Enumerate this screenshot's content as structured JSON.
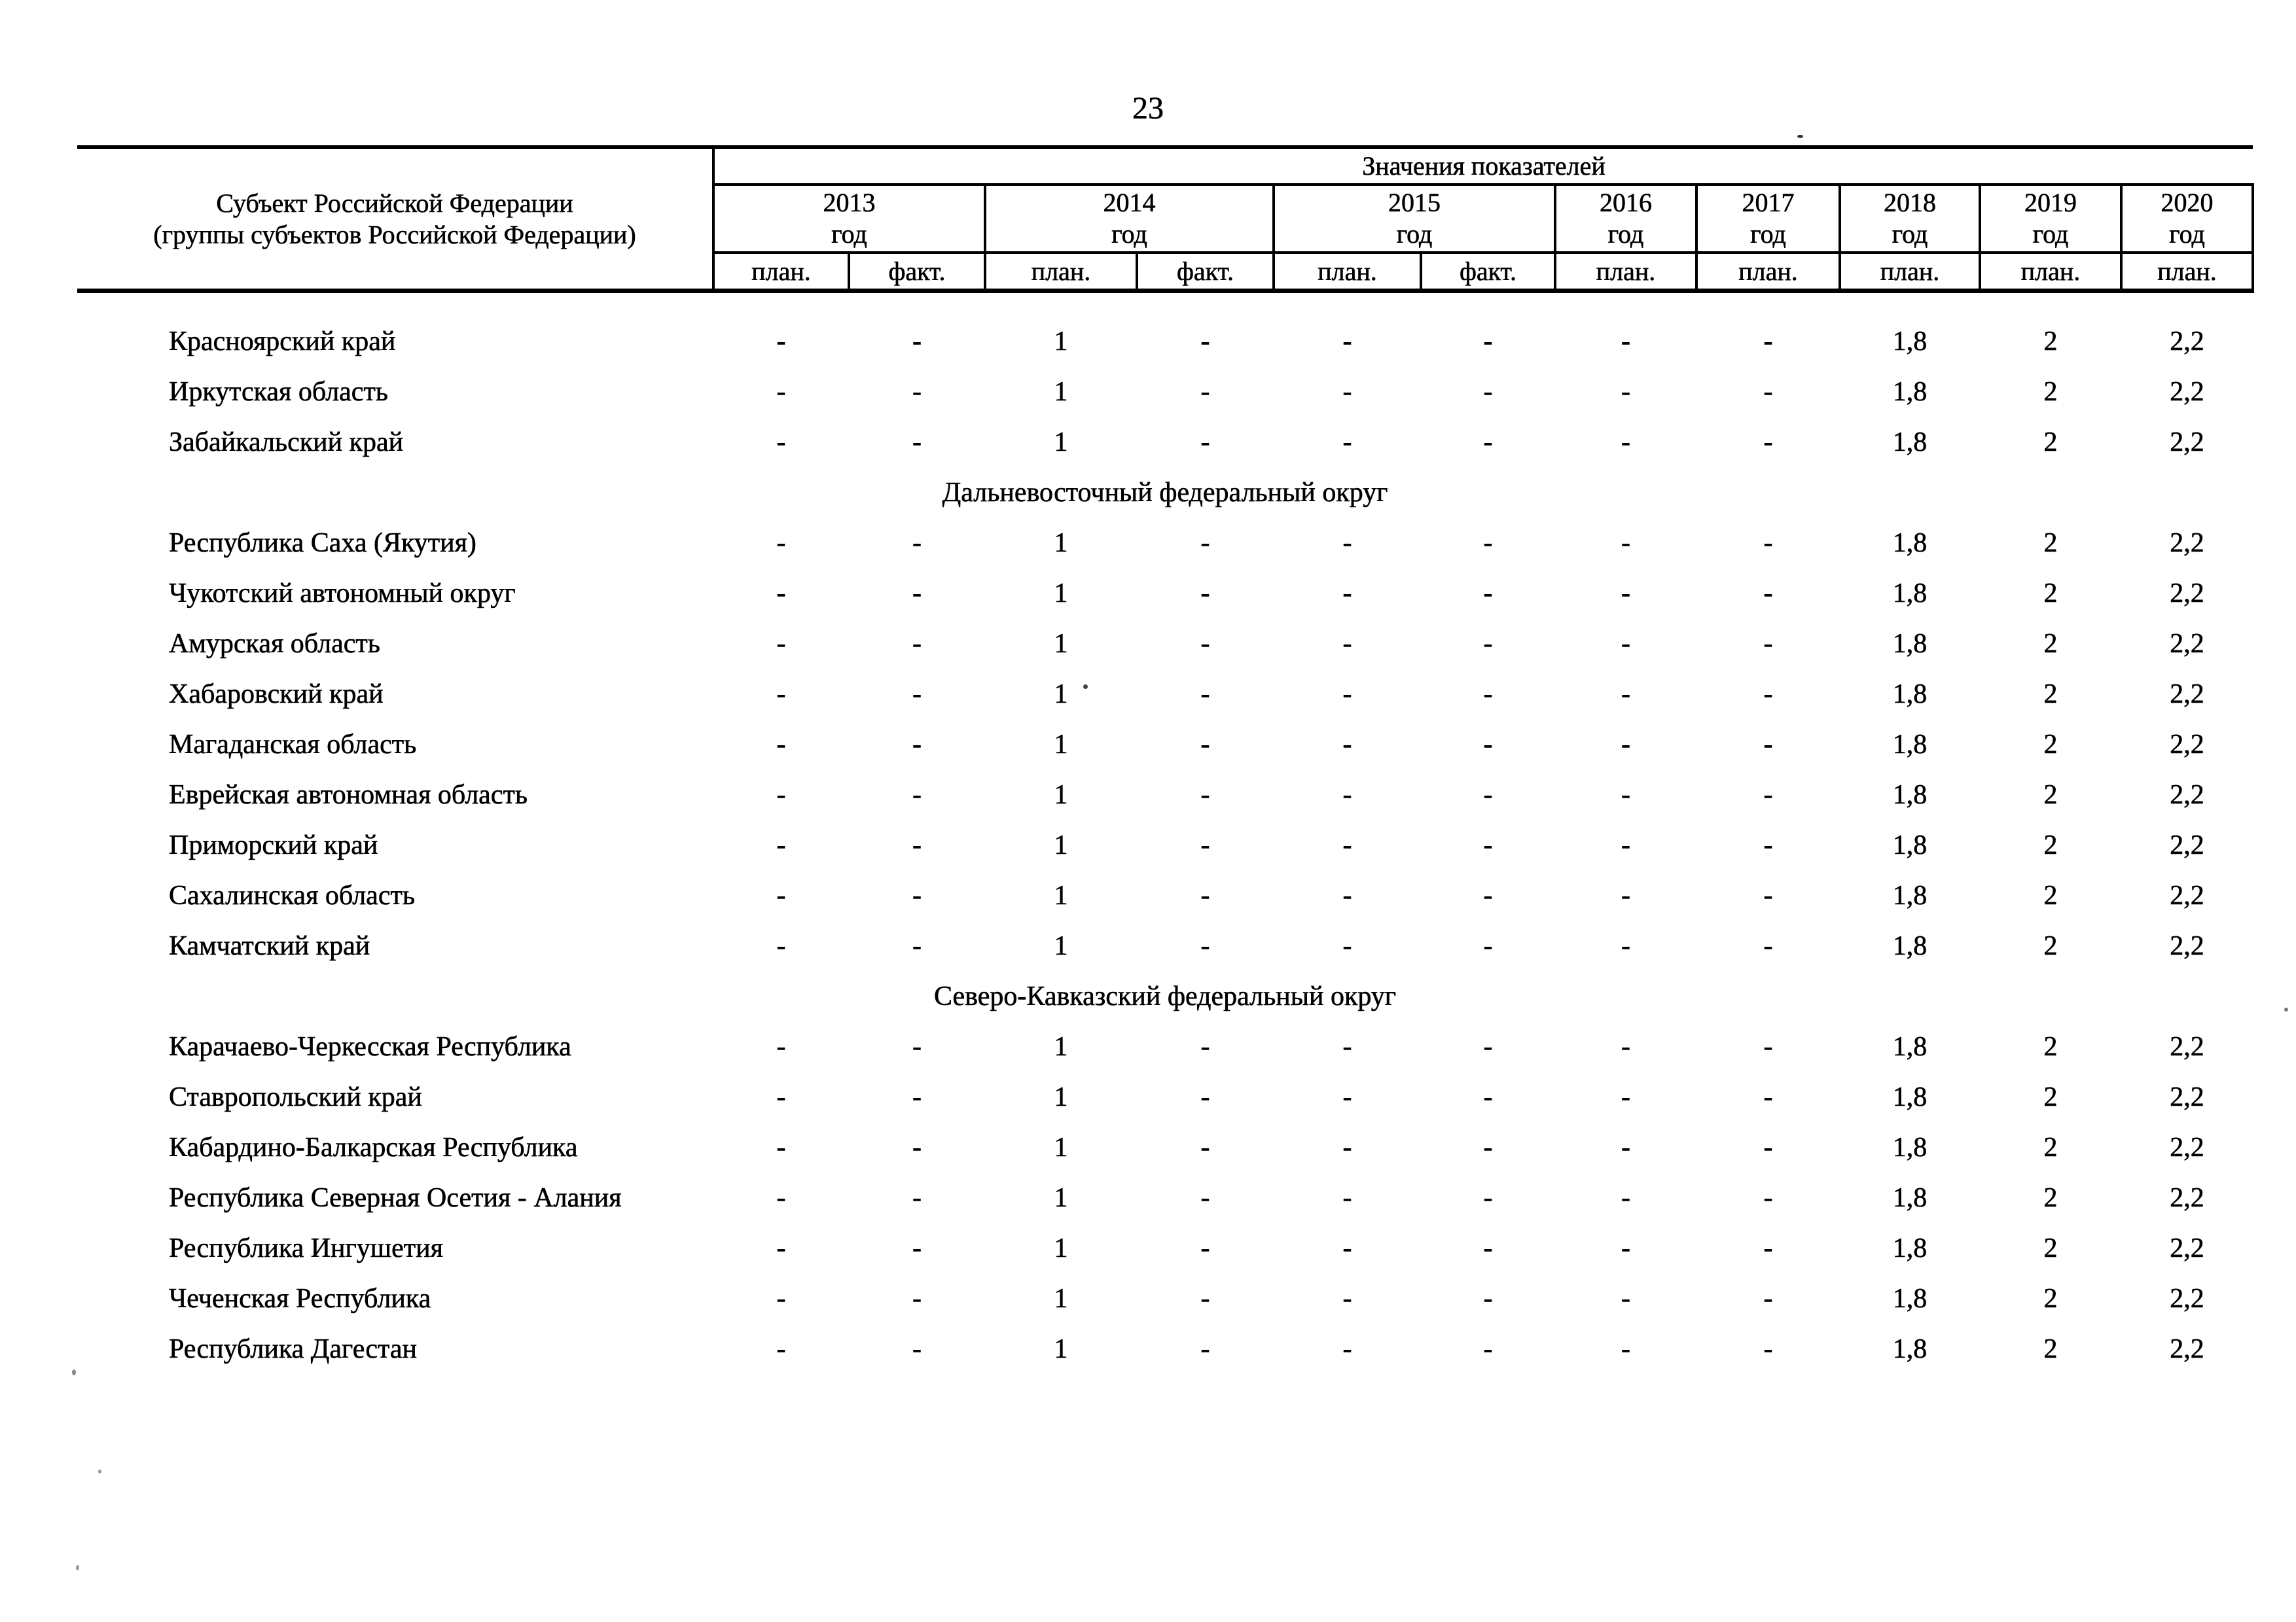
{
  "page": {
    "number": "23"
  },
  "table": {
    "header": {
      "subject_label_line1": "Субъект Российской Федерации",
      "subject_label_line2": "(группы субъектов Российской Федерации)",
      "values_label": "Значения показателей",
      "year_groups": [
        {
          "year": "2013",
          "suffix": "год",
          "cols": [
            "план.",
            "факт."
          ]
        },
        {
          "year": "2014",
          "suffix": "год",
          "cols": [
            "план.",
            "факт."
          ]
        },
        {
          "year": "2015",
          "suffix": "год",
          "cols": [
            "план.",
            "факт."
          ]
        },
        {
          "year": "2016",
          "suffix": "год",
          "cols": [
            "план."
          ]
        },
        {
          "year": "2017",
          "suffix": "год",
          "cols": [
            "план."
          ]
        },
        {
          "year": "2018",
          "suffix": "год",
          "cols": [
            "план."
          ]
        },
        {
          "year": "2019",
          "suffix": "год",
          "cols": [
            "план."
          ]
        },
        {
          "year": "2020",
          "suffix": "год",
          "cols": [
            "план."
          ]
        }
      ]
    },
    "rows": [
      {
        "type": "data",
        "name": "Красноярский край",
        "values": [
          "-",
          "-",
          "1",
          "-",
          "-",
          "-",
          "-",
          "-",
          "1,8",
          "2",
          "2,2"
        ]
      },
      {
        "type": "data",
        "name": "Иркутская область",
        "values": [
          "-",
          "-",
          "1",
          "-",
          "-",
          "-",
          "-",
          "-",
          "1,8",
          "2",
          "2,2"
        ]
      },
      {
        "type": "data",
        "name": "Забайкальский край",
        "values": [
          "-",
          "-",
          "1",
          "-",
          "-",
          "-",
          "-",
          "-",
          "1,8",
          "2",
          "2,2"
        ]
      },
      {
        "type": "section",
        "name": "Дальневосточный федеральный округ"
      },
      {
        "type": "data",
        "name": "Республика Саха (Якутия)",
        "values": [
          "-",
          "-",
          "1",
          "-",
          "-",
          "-",
          "-",
          "-",
          "1,8",
          "2",
          "2,2"
        ]
      },
      {
        "type": "data",
        "name": "Чукотский автономный округ",
        "values": [
          "-",
          "-",
          "1",
          "-",
          "-",
          "-",
          "-",
          "-",
          "1,8",
          "2",
          "2,2"
        ]
      },
      {
        "type": "data",
        "name": "Амурская область",
        "values": [
          "-",
          "-",
          "1",
          "-",
          "-",
          "-",
          "-",
          "-",
          "1,8",
          "2",
          "2,2"
        ]
      },
      {
        "type": "data",
        "name": "Хабаровский край",
        "values": [
          "-",
          "-",
          "1",
          "-",
          "-",
          "-",
          "-",
          "-",
          "1,8",
          "2",
          "2,2"
        ]
      },
      {
        "type": "data",
        "name": "Магаданская область",
        "values": [
          "-",
          "-",
          "1",
          "-",
          "-",
          "-",
          "-",
          "-",
          "1,8",
          "2",
          "2,2"
        ]
      },
      {
        "type": "data",
        "name": "Еврейская автономная область",
        "values": [
          "-",
          "-",
          "1",
          "-",
          "-",
          "-",
          "-",
          "-",
          "1,8",
          "2",
          "2,2"
        ]
      },
      {
        "type": "data",
        "name": "Приморский край",
        "values": [
          "-",
          "-",
          "1",
          "-",
          "-",
          "-",
          "-",
          "-",
          "1,8",
          "2",
          "2,2"
        ]
      },
      {
        "type": "data",
        "name": "Сахалинская область",
        "values": [
          "-",
          "-",
          "1",
          "-",
          "-",
          "-",
          "-",
          "-",
          "1,8",
          "2",
          "2,2"
        ]
      },
      {
        "type": "data",
        "name": "Камчатский край",
        "values": [
          "-",
          "-",
          "1",
          "-",
          "-",
          "-",
          "-",
          "-",
          "1,8",
          "2",
          "2,2"
        ]
      },
      {
        "type": "section",
        "name": "Северо-Кавказский федеральный округ"
      },
      {
        "type": "data",
        "name": "Карачаево-Черкесская Республика",
        "values": [
          "-",
          "-",
          "1",
          "-",
          "-",
          "-",
          "-",
          "-",
          "1,8",
          "2",
          "2,2"
        ]
      },
      {
        "type": "data",
        "name": "Ставропольский край",
        "values": [
          "-",
          "-",
          "1",
          "-",
          "-",
          "-",
          "-",
          "-",
          "1,8",
          "2",
          "2,2"
        ]
      },
      {
        "type": "data",
        "name": "Кабардино-Балкарская Республика",
        "values": [
          "-",
          "-",
          "1",
          "-",
          "-",
          "-",
          "-",
          "-",
          "1,8",
          "2",
          "2,2"
        ]
      },
      {
        "type": "data",
        "name": "Республика Северная Осетия - Алания",
        "values": [
          "-",
          "-",
          "1",
          "-",
          "-",
          "-",
          "-",
          "-",
          "1,8",
          "2",
          "2,2"
        ]
      },
      {
        "type": "data",
        "name": "Республика Ингушетия",
        "values": [
          "-",
          "-",
          "1",
          "-",
          "-",
          "-",
          "-",
          "-",
          "1,8",
          "2",
          "2,2"
        ]
      },
      {
        "type": "data",
        "name": "Чеченская Республика",
        "values": [
          "-",
          "-",
          "1",
          "-",
          "-",
          "-",
          "-",
          "-",
          "1,8",
          "2",
          "2,2"
        ]
      },
      {
        "type": "data",
        "name": "Республика Дагестан",
        "values": [
          "-",
          "-",
          "1",
          "-",
          "-",
          "-",
          "-",
          "-",
          "1,8",
          "2",
          "2,2"
        ]
      }
    ]
  }
}
